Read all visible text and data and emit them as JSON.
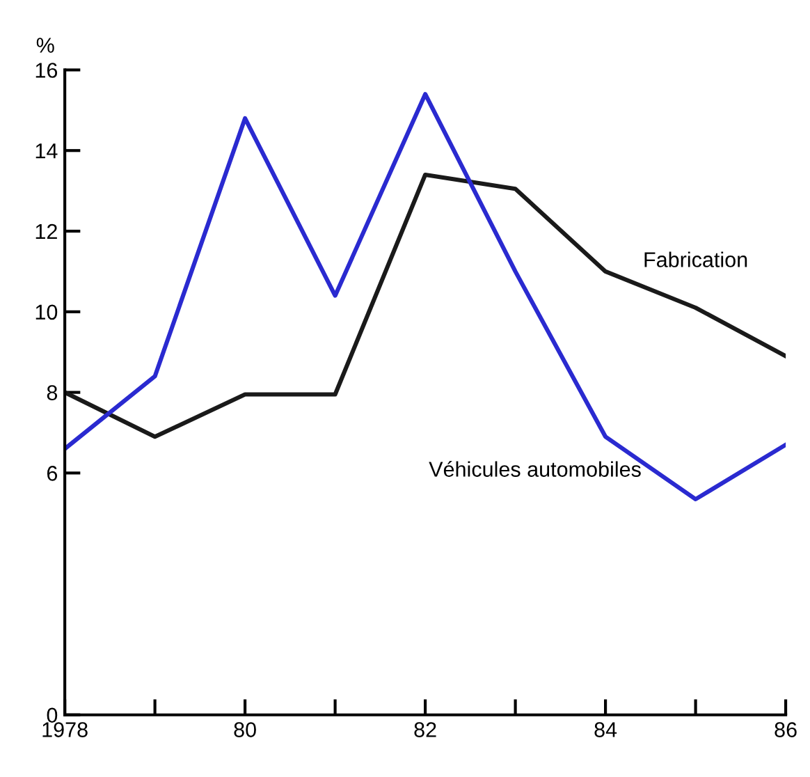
{
  "chart_data": {
    "type": "line",
    "ylabel": "%",
    "x": [
      1978,
      1979,
      1980,
      1981,
      1982,
      1983,
      1984,
      1985,
      1986
    ],
    "series": [
      {
        "name": "Fabrication",
        "color": "#1a1a1a",
        "values": [
          8.0,
          6.9,
          7.95,
          7.95,
          13.4,
          13.05,
          11.0,
          10.1,
          8.9
        ]
      },
      {
        "name": "Véhicules automobiles",
        "color": "#2a2ad0",
        "values": [
          6.6,
          8.4,
          14.8,
          10.4,
          15.4,
          11.0,
          6.9,
          5.35,
          6.7
        ]
      }
    ],
    "xlim": [
      1978,
      1986
    ],
    "xticks": [
      {
        "value": 1978,
        "label": "1978"
      },
      {
        "value": 1979,
        "label": null
      },
      {
        "value": 1980,
        "label": "80"
      },
      {
        "value": 1981,
        "label": null
      },
      {
        "value": 1982,
        "label": "82"
      },
      {
        "value": 1983,
        "label": null
      },
      {
        "value": 1984,
        "label": "84"
      },
      {
        "value": 1985,
        "label": null
      },
      {
        "value": 1986,
        "label": "86"
      }
    ],
    "ylim": [
      0,
      16
    ],
    "yticks": [
      0,
      6,
      8,
      10,
      12,
      14,
      16
    ],
    "grid": false,
    "legend": false,
    "marker": "none",
    "line_style": "solid"
  }
}
